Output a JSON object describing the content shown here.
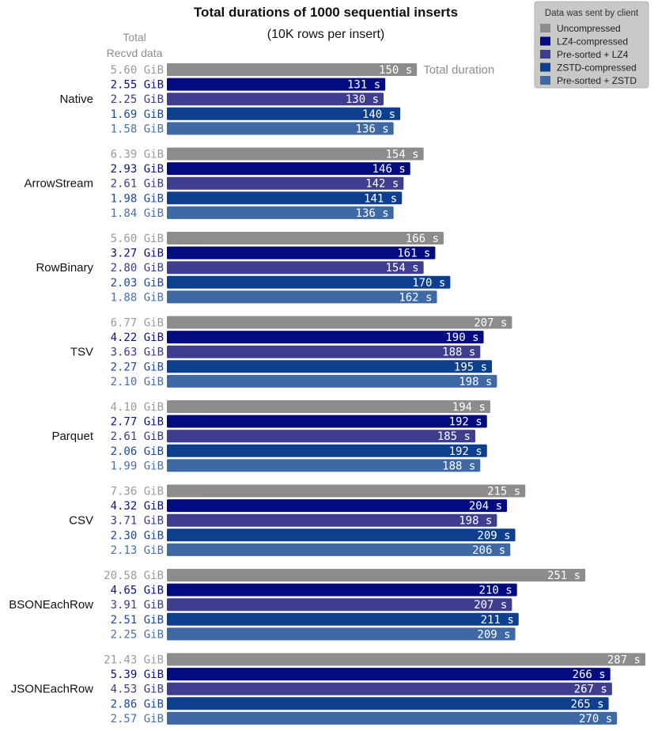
{
  "chart_data": {
    "type": "bar",
    "orientation": "horizontal",
    "title": "Total durations of 1000 sequential inserts",
    "subtitle": "(10K rows per insert)",
    "recvd_header_line1": "Total",
    "recvd_header_line2": "Recvd data",
    "duration_header": "Total duration",
    "value_unit": "s",
    "size_unit": "GiB",
    "legend_position": "top-right",
    "legend": {
      "title": "Data was sent by client",
      "entries": [
        "Uncompressed",
        "LZ4-compressed",
        "Pre-sorted + LZ4",
        "ZSTD-compressed",
        "Pre-sorted + ZSTD"
      ]
    },
    "series_colors": [
      "#8c8c8a",
      "#020b7f",
      "#3f3d8e",
      "#0d3f8e",
      "#3e69a4"
    ],
    "size_text_colors": [
      "#9a9a98",
      "#0c1180",
      "#3a3a88",
      "#1a4a98",
      "#4a6fa8"
    ],
    "groups": [
      {
        "name": "Native",
        "durations": [
          150,
          131,
          130,
          140,
          136
        ],
        "sizes": [
          "5.60",
          "2.55",
          "2.25",
          "1.69",
          "1.58"
        ]
      },
      {
        "name": "ArrowStream",
        "durations": [
          154,
          146,
          142,
          141,
          136
        ],
        "sizes": [
          "6.39",
          "2.93",
          "2.61",
          "1.98",
          "1.84"
        ]
      },
      {
        "name": "RowBinary",
        "durations": [
          166,
          161,
          154,
          170,
          162
        ],
        "sizes": [
          "5.60",
          "3.27",
          "2.80",
          "2.03",
          "1.88"
        ]
      },
      {
        "name": "TSV",
        "durations": [
          207,
          190,
          188,
          195,
          198
        ],
        "sizes": [
          "6.77",
          "4.22",
          "3.63",
          "2.27",
          "2.10"
        ]
      },
      {
        "name": "Parquet",
        "durations": [
          194,
          192,
          185,
          192,
          188
        ],
        "sizes": [
          "4.10",
          "2.77",
          "2.61",
          "2.06",
          "1.99"
        ]
      },
      {
        "name": "CSV",
        "durations": [
          215,
          204,
          198,
          209,
          206
        ],
        "sizes": [
          "7.36",
          "4.32",
          "3.71",
          "2.30",
          "2.13"
        ]
      },
      {
        "name": "BSONEachRow",
        "durations": [
          251,
          210,
          207,
          211,
          209
        ],
        "sizes": [
          "20.58",
          "4.65",
          "3.91",
          "2.51",
          "2.25"
        ]
      },
      {
        "name": "JSONEachRow",
        "durations": [
          287,
          266,
          267,
          265,
          270
        ],
        "sizes": [
          "21.43",
          "5.39",
          "4.53",
          "2.86",
          "2.57"
        ]
      }
    ],
    "xlim": [
      0,
      287
    ]
  }
}
